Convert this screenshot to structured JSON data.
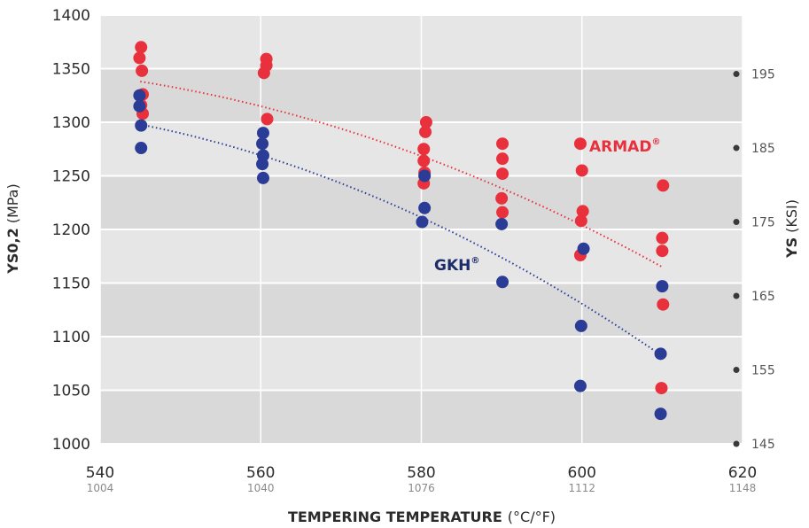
{
  "chart_data": {
    "type": "scatter",
    "xlabel_bold": "TEMPERING TEMPERATURE",
    "xlabel_unit": "(°C/°F)",
    "ylabel_bold": "YS0,2",
    "ylabel_unit": "(MPa)",
    "y2label_bold": "YS",
    "y2label_unit": "(KSI)",
    "xlim": [
      540,
      620
    ],
    "ylim": [
      1000,
      1400
    ],
    "x_ticks": [
      540,
      560,
      580,
      600,
      620
    ],
    "x_ticks_secondary": [
      "1004",
      "1040",
      "1076",
      "1112",
      "1148"
    ],
    "y_ticks": [
      1000,
      1050,
      1100,
      1150,
      1200,
      1250,
      1300,
      1350,
      1400
    ],
    "y2_ticks": [
      {
        "label": "145",
        "mpa": 1000
      },
      {
        "label": "155",
        "mpa": 1069
      },
      {
        "label": "165",
        "mpa": 1138
      },
      {
        "label": "175",
        "mpa": 1207
      },
      {
        "label": "185",
        "mpa": 1276
      },
      {
        "label": "195",
        "mpa": 1345
      }
    ],
    "grid": true,
    "series": [
      {
        "name": "ARMAD",
        "color": "#e8313c",
        "points": [
          [
            545.1,
            1370
          ],
          [
            544.9,
            1360
          ],
          [
            545.2,
            1348
          ],
          [
            545.3,
            1326
          ],
          [
            545.1,
            1316
          ],
          [
            545.3,
            1308
          ],
          [
            560.7,
            1359
          ],
          [
            560.7,
            1353
          ],
          [
            560.4,
            1346
          ],
          [
            560.8,
            1303
          ],
          [
            580.6,
            1300
          ],
          [
            580.5,
            1291
          ],
          [
            580.3,
            1275
          ],
          [
            580.3,
            1264
          ],
          [
            580.4,
            1253
          ],
          [
            580.3,
            1243
          ],
          [
            590.1,
            1280
          ],
          [
            590.1,
            1266
          ],
          [
            590.1,
            1252
          ],
          [
            590.0,
            1229
          ],
          [
            590.1,
            1216
          ],
          [
            599.8,
            1280
          ],
          [
            600.0,
            1255
          ],
          [
            600.1,
            1217
          ],
          [
            599.9,
            1208
          ],
          [
            599.8,
            1176
          ],
          [
            610.1,
            1241
          ],
          [
            610.0,
            1192
          ],
          [
            610.0,
            1180
          ],
          [
            610.1,
            1130
          ],
          [
            609.9,
            1052
          ]
        ],
        "trend": [
          [
            545,
            1338
          ],
          [
            610,
            1165
          ]
        ]
      },
      {
        "name": "GKH",
        "color": "#2a3c96",
        "points": [
          [
            544.9,
            1325
          ],
          [
            544.9,
            1315
          ],
          [
            545.1,
            1297
          ],
          [
            545.1,
            1276
          ],
          [
            560.3,
            1290
          ],
          [
            560.2,
            1280
          ],
          [
            560.3,
            1269
          ],
          [
            560.2,
            1261
          ],
          [
            560.3,
            1248
          ],
          [
            580.4,
            1250
          ],
          [
            580.4,
            1220
          ],
          [
            580.1,
            1207
          ],
          [
            590.0,
            1205
          ],
          [
            590.1,
            1151
          ],
          [
            600.2,
            1182
          ],
          [
            599.9,
            1110
          ],
          [
            599.8,
            1054
          ],
          [
            610.0,
            1147
          ],
          [
            609.8,
            1084
          ],
          [
            609.8,
            1028
          ]
        ],
        "trend": [
          [
            545,
            1298
          ],
          [
            610,
            1082
          ]
        ]
      }
    ],
    "labels": [
      {
        "text": "ARMAD",
        "sup": "®",
        "color": "#e8313c"
      },
      {
        "text": "GKH",
        "sup": "®",
        "color": "#1d2b6b"
      }
    ]
  }
}
